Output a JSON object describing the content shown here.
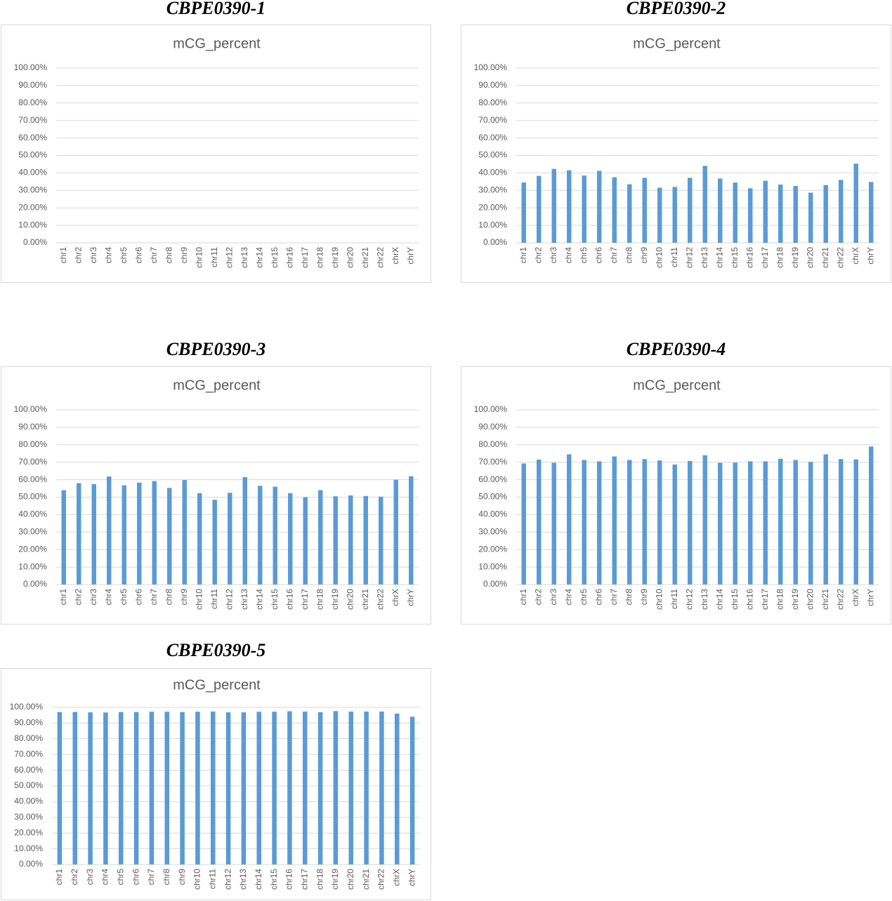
{
  "chart_data": [
    {
      "type": "bar",
      "heading": "CBPE0390-1",
      "title": "mCG_percent",
      "color": "#5b9bd5",
      "grid": true,
      "categories": [
        "chr1",
        "chr2",
        "chr3",
        "chr4",
        "chr5",
        "chr6",
        "chr7",
        "chr8",
        "chr9",
        "chr10",
        "chr11",
        "chr12",
        "chr13",
        "chr14",
        "chr15",
        "chr16",
        "chr17",
        "chr18",
        "chr19",
        "chr20",
        "chr21",
        "chr22",
        "chrX",
        "chrY"
      ],
      "values": [
        null,
        null,
        null,
        null,
        null,
        null,
        null,
        null,
        null,
        null,
        null,
        null,
        null,
        null,
        null,
        null,
        null,
        null,
        null,
        null,
        null,
        null,
        null,
        null
      ],
      "ylim": [
        0,
        100
      ],
      "yticks": [
        {
          "value": 0,
          "label": "0.00%"
        },
        {
          "value": 10,
          "label": "10.00%"
        },
        {
          "value": 20,
          "label": "20.00%"
        },
        {
          "value": 30,
          "label": "30.00%"
        },
        {
          "value": 40,
          "label": "40.00%"
        },
        {
          "value": 50,
          "label": "50.00%"
        },
        {
          "value": 60,
          "label": "60.00%"
        },
        {
          "value": 70,
          "label": "70.00%"
        },
        {
          "value": 80,
          "label": "80.00%"
        },
        {
          "value": 90,
          "label": "90.00%"
        },
        {
          "value": 100,
          "label": "100.00%"
        }
      ]
    },
    {
      "type": "bar",
      "heading": "CBPE0390-2",
      "title": "mCG_percent",
      "color": "#5b9bd5",
      "grid": true,
      "categories": [
        "chr1",
        "chr2",
        "chr3",
        "chr4",
        "chr5",
        "chr6",
        "chr7",
        "chr8",
        "chr9",
        "chr10",
        "chr11",
        "chr12",
        "chr13",
        "chr14",
        "chr15",
        "chr16",
        "chr17",
        "chr18",
        "chr19",
        "chr20",
        "chr21",
        "chr22",
        "chrX",
        "chrY"
      ],
      "values": [
        34.5,
        38.3,
        42.3,
        41.5,
        38.5,
        41.2,
        37.5,
        33.5,
        37.2,
        31.5,
        32,
        37.2,
        44,
        36.8,
        34.5,
        31.2,
        35.5,
        33.3,
        32.5,
        28.7,
        33,
        36,
        45.3,
        34.8
      ],
      "ylim": [
        0,
        100
      ],
      "yticks": [
        {
          "value": 0,
          "label": "0.00%"
        },
        {
          "value": 10,
          "label": "10.00%"
        },
        {
          "value": 20,
          "label": "20.00%"
        },
        {
          "value": 30,
          "label": "30.00%"
        },
        {
          "value": 40,
          "label": "40.00%"
        },
        {
          "value": 50,
          "label": "50.00%"
        },
        {
          "value": 60,
          "label": "60.00%"
        },
        {
          "value": 70,
          "label": "70.00%"
        },
        {
          "value": 80,
          "label": "80.00%"
        },
        {
          "value": 90,
          "label": "90.00%"
        },
        {
          "value": 100,
          "label": "100.00%"
        }
      ]
    },
    {
      "type": "bar",
      "heading": "CBPE0390-3",
      "title": "mCG_percent",
      "color": "#5b9bd5",
      "grid": true,
      "categories": [
        "chr1",
        "chr2",
        "chr3",
        "chr4",
        "chr5",
        "chr6",
        "chr7",
        "chr8",
        "chr9",
        "chr10",
        "chr11",
        "chr12",
        "chr13",
        "chr14",
        "chr15",
        "chr16",
        "chr17",
        "chr18",
        "chr19",
        "chr20",
        "chr21",
        "chr22",
        "chrX",
        "chrY"
      ],
      "values": [
        54,
        58,
        57.5,
        61.8,
        56.8,
        58.3,
        59.2,
        55.3,
        59.8,
        52.3,
        48.5,
        52.5,
        61.5,
        56.5,
        56,
        52.3,
        50,
        54,
        50.5,
        51,
        50.7,
        50.3,
        60,
        62
      ],
      "ylim": [
        0,
        100
      ],
      "yticks": [
        {
          "value": 0,
          "label": "0.00%"
        },
        {
          "value": 10,
          "label": "10.00%"
        },
        {
          "value": 20,
          "label": "20.00%"
        },
        {
          "value": 30,
          "label": "30.00%"
        },
        {
          "value": 40,
          "label": "40.00%"
        },
        {
          "value": 50,
          "label": "50.00%"
        },
        {
          "value": 60,
          "label": "60.00%"
        },
        {
          "value": 70,
          "label": "70.00%"
        },
        {
          "value": 80,
          "label": "80.00%"
        },
        {
          "value": 90,
          "label": "90.00%"
        },
        {
          "value": 100,
          "label": "100.00%"
        }
      ]
    },
    {
      "type": "bar",
      "heading": "CBPE0390-4",
      "title": "mCG_percent",
      "color": "#5b9bd5",
      "grid": true,
      "categories": [
        "chr1",
        "chr2",
        "chr3",
        "chr4",
        "chr5",
        "chr6",
        "chr7",
        "chr8",
        "chr9",
        "chr10",
        "chr11",
        "chr12",
        "chr13",
        "chr14",
        "chr15",
        "chr16",
        "chr17",
        "chr18",
        "chr19",
        "chr20",
        "chr21",
        "chr22",
        "chrX",
        "chrY"
      ],
      "values": [
        69.3,
        71.5,
        69.7,
        74.5,
        71.3,
        70.5,
        73.3,
        71.3,
        71.8,
        71,
        68.7,
        70.7,
        74,
        69.7,
        69.8,
        70.5,
        70.5,
        72,
        71.3,
        70.2,
        74.5,
        71.8,
        71.6,
        79
      ],
      "ylim": [
        0,
        100
      ],
      "yticks": [
        {
          "value": 0,
          "label": "0.00%"
        },
        {
          "value": 10,
          "label": "10.00%"
        },
        {
          "value": 20,
          "label": "20.00%"
        },
        {
          "value": 30,
          "label": "30.00%"
        },
        {
          "value": 40,
          "label": "40.00%"
        },
        {
          "value": 50,
          "label": "50.00%"
        },
        {
          "value": 60,
          "label": "60.00%"
        },
        {
          "value": 70,
          "label": "70.00%"
        },
        {
          "value": 80,
          "label": "80.00%"
        },
        {
          "value": 90,
          "label": "90.00%"
        },
        {
          "value": 100,
          "label": "100.00%"
        }
      ]
    },
    {
      "type": "bar",
      "heading": "CBPE0390-5",
      "title": "mCG_percent",
      "color": "#5b9bd5",
      "grid": true,
      "categories": [
        "chr1",
        "chr2",
        "chr3",
        "chr4",
        "chr5",
        "chr6",
        "chr7",
        "chr8",
        "chr9",
        "chr10",
        "chr11",
        "chr12",
        "chr13",
        "chr14",
        "chr15",
        "chr16",
        "chr17",
        "chr18",
        "chr19",
        "chr20",
        "chr21",
        "chr22",
        "chrX",
        "chrY"
      ],
      "values": [
        97,
        97,
        96.8,
        96.7,
        97,
        97,
        97.2,
        97.2,
        97,
        97.2,
        97.3,
        96.8,
        96.8,
        97.2,
        97.2,
        97.5,
        97.3,
        96.9,
        97.6,
        97.3,
        97.3,
        97.3,
        96,
        94
      ],
      "ylim": [
        0,
        100
      ],
      "yticks": [
        {
          "value": 0,
          "label": "0.00%"
        },
        {
          "value": 10,
          "label": "10.00%"
        },
        {
          "value": 20,
          "label": "20.00%"
        },
        {
          "value": 30,
          "label": "30.00%"
        },
        {
          "value": 40,
          "label": "40.00%"
        },
        {
          "value": 50,
          "label": "50.00%"
        },
        {
          "value": 60,
          "label": "60.00%"
        },
        {
          "value": 70,
          "label": "70.00%"
        },
        {
          "value": 80,
          "label": "80.00%"
        },
        {
          "value": 90,
          "label": "90.00%"
        },
        {
          "value": 100,
          "label": "100.00%"
        }
      ]
    }
  ]
}
